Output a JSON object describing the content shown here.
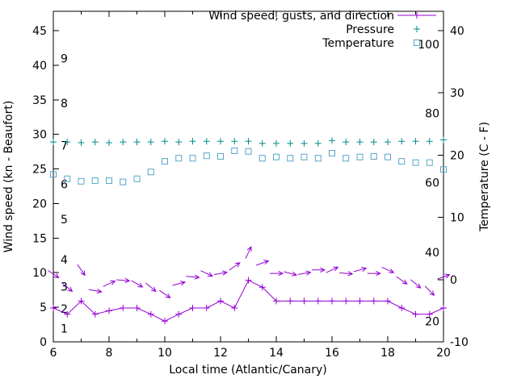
{
  "chart_data": {
    "type": "line",
    "title": "",
    "xlabel": "Local time (Atlantic/Canary)",
    "ylabel_left": "Wind speed (kn - Beaufort)",
    "ylabel_right": "Temperature (C - F)",
    "x_range": [
      6,
      20
    ],
    "x_major_ticks": [
      6,
      8,
      10,
      12,
      14,
      16,
      18,
      20
    ],
    "x_minor_ticks": [
      7,
      9,
      11,
      13,
      15,
      17,
      19
    ],
    "y_left_range": [
      0,
      47.8
    ],
    "y_left_ticks": [
      0,
      5,
      10,
      15,
      20,
      25,
      30,
      35,
      40,
      45
    ],
    "y_right_ticks": [
      -10,
      0,
      10,
      20,
      30,
      40
    ],
    "y_right_to_left": {
      "offset": 10,
      "factor": 0.9
    },
    "grid": false,
    "legend_position": "top-right-inside",
    "colors": {
      "axis": "#000000",
      "wind": "#9400d3",
      "gusts": "#9400d3",
      "pressure": "#008b8b",
      "temperature": "#56a5c8"
    },
    "beaufort_labels": [
      {
        "text": "1",
        "kn": 1.9
      },
      {
        "text": "2",
        "kn": 4.8
      },
      {
        "text": "3",
        "kn": 8
      },
      {
        "text": "4",
        "kn": 11.9
      },
      {
        "text": "5",
        "kn": 17.7
      },
      {
        "text": "6",
        "kn": 22.8
      },
      {
        "text": "7",
        "kn": 28.4
      },
      {
        "text": "8",
        "kn": 34.5
      },
      {
        "text": "9",
        "kn": 41
      }
    ],
    "fahrenheit_labels": [
      {
        "text": "20",
        "c": -6.7
      },
      {
        "text": "40",
        "c": 4.4
      },
      {
        "text": "60",
        "c": 15.6
      },
      {
        "text": "80",
        "c": 26.7
      },
      {
        "text": "100",
        "c": 37.8
      }
    ],
    "legend": [
      {
        "label": "Wind speed, gusts, and direction",
        "series_key": "wind",
        "sample": "line+plus"
      },
      {
        "label": "Pressure",
        "series_key": "pressure",
        "sample": "plus"
      },
      {
        "label": "Temperature",
        "series_key": "temperature",
        "sample": "square"
      }
    ],
    "x": [
      6,
      6.5,
      7,
      7.5,
      8,
      8.5,
      9,
      9.5,
      10,
      10.5,
      11,
      11.5,
      12,
      12.5,
      13,
      13.5,
      14,
      14.5,
      15,
      15.5,
      16,
      16.5,
      17,
      17.5,
      18,
      18.5,
      19,
      19.5,
      20
    ],
    "series": [
      {
        "key": "wind",
        "axis": "left",
        "style": "line+plus",
        "unit": "kn",
        "values": [
          4.9,
          4,
          5.9,
          4,
          4.5,
          4.9,
          4.9,
          4,
          3,
          4,
          4.9,
          4.9,
          5.9,
          4.9,
          8.9,
          7.9,
          5.9,
          5.9,
          5.9,
          5.9,
          5.9,
          5.9,
          5.9,
          5.9,
          5.9,
          4.9,
          4,
          4,
          4.9
        ]
      },
      {
        "key": "gusts",
        "axis": "left",
        "style": "arrow",
        "unit": "kn",
        "values": [
          9.8,
          7.9,
          10.4,
          7.4,
          8.4,
          8.9,
          8.4,
          7.9,
          6.9,
          8.4,
          9.4,
          9.9,
          9.9,
          10.9,
          12.9,
          11.4,
          9.9,
          9.9,
          9.9,
          10.4,
          10.4,
          9.9,
          10.4,
          9.9,
          10.4,
          8.9,
          8.4,
          7.4,
          9.4
        ],
        "angles_deg": [
          35,
          40,
          55,
          10,
          -25,
          5,
          30,
          40,
          35,
          -15,
          5,
          25,
          -10,
          -35,
          -65,
          -20,
          0,
          15,
          -10,
          0,
          -25,
          5,
          -15,
          0,
          25,
          35,
          40,
          45,
          -20
        ]
      },
      {
        "key": "pressure",
        "axis": "left",
        "style": "plus",
        "unit": "relative",
        "values": [
          28.9,
          28.9,
          28.8,
          28.9,
          28.8,
          28.9,
          28.9,
          28.9,
          29,
          28.9,
          29,
          29,
          29,
          29,
          29,
          28.7,
          28.7,
          28.7,
          28.7,
          28.7,
          29.1,
          28.9,
          28.9,
          28.9,
          28.9,
          29,
          29,
          29,
          29.2
        ]
      },
      {
        "key": "temperature",
        "axis": "right",
        "style": "square",
        "unit": "C",
        "values": [
          16.9,
          16.2,
          15.8,
          15.9,
          15.9,
          15.7,
          16.2,
          17.3,
          19,
          19.5,
          19.5,
          19.9,
          19.8,
          20.7,
          20.6,
          19.5,
          19.7,
          19.5,
          19.7,
          19.5,
          20.3,
          19.5,
          19.7,
          19.8,
          19.7,
          19,
          18.8,
          18.8,
          17.7
        ]
      }
    ]
  }
}
